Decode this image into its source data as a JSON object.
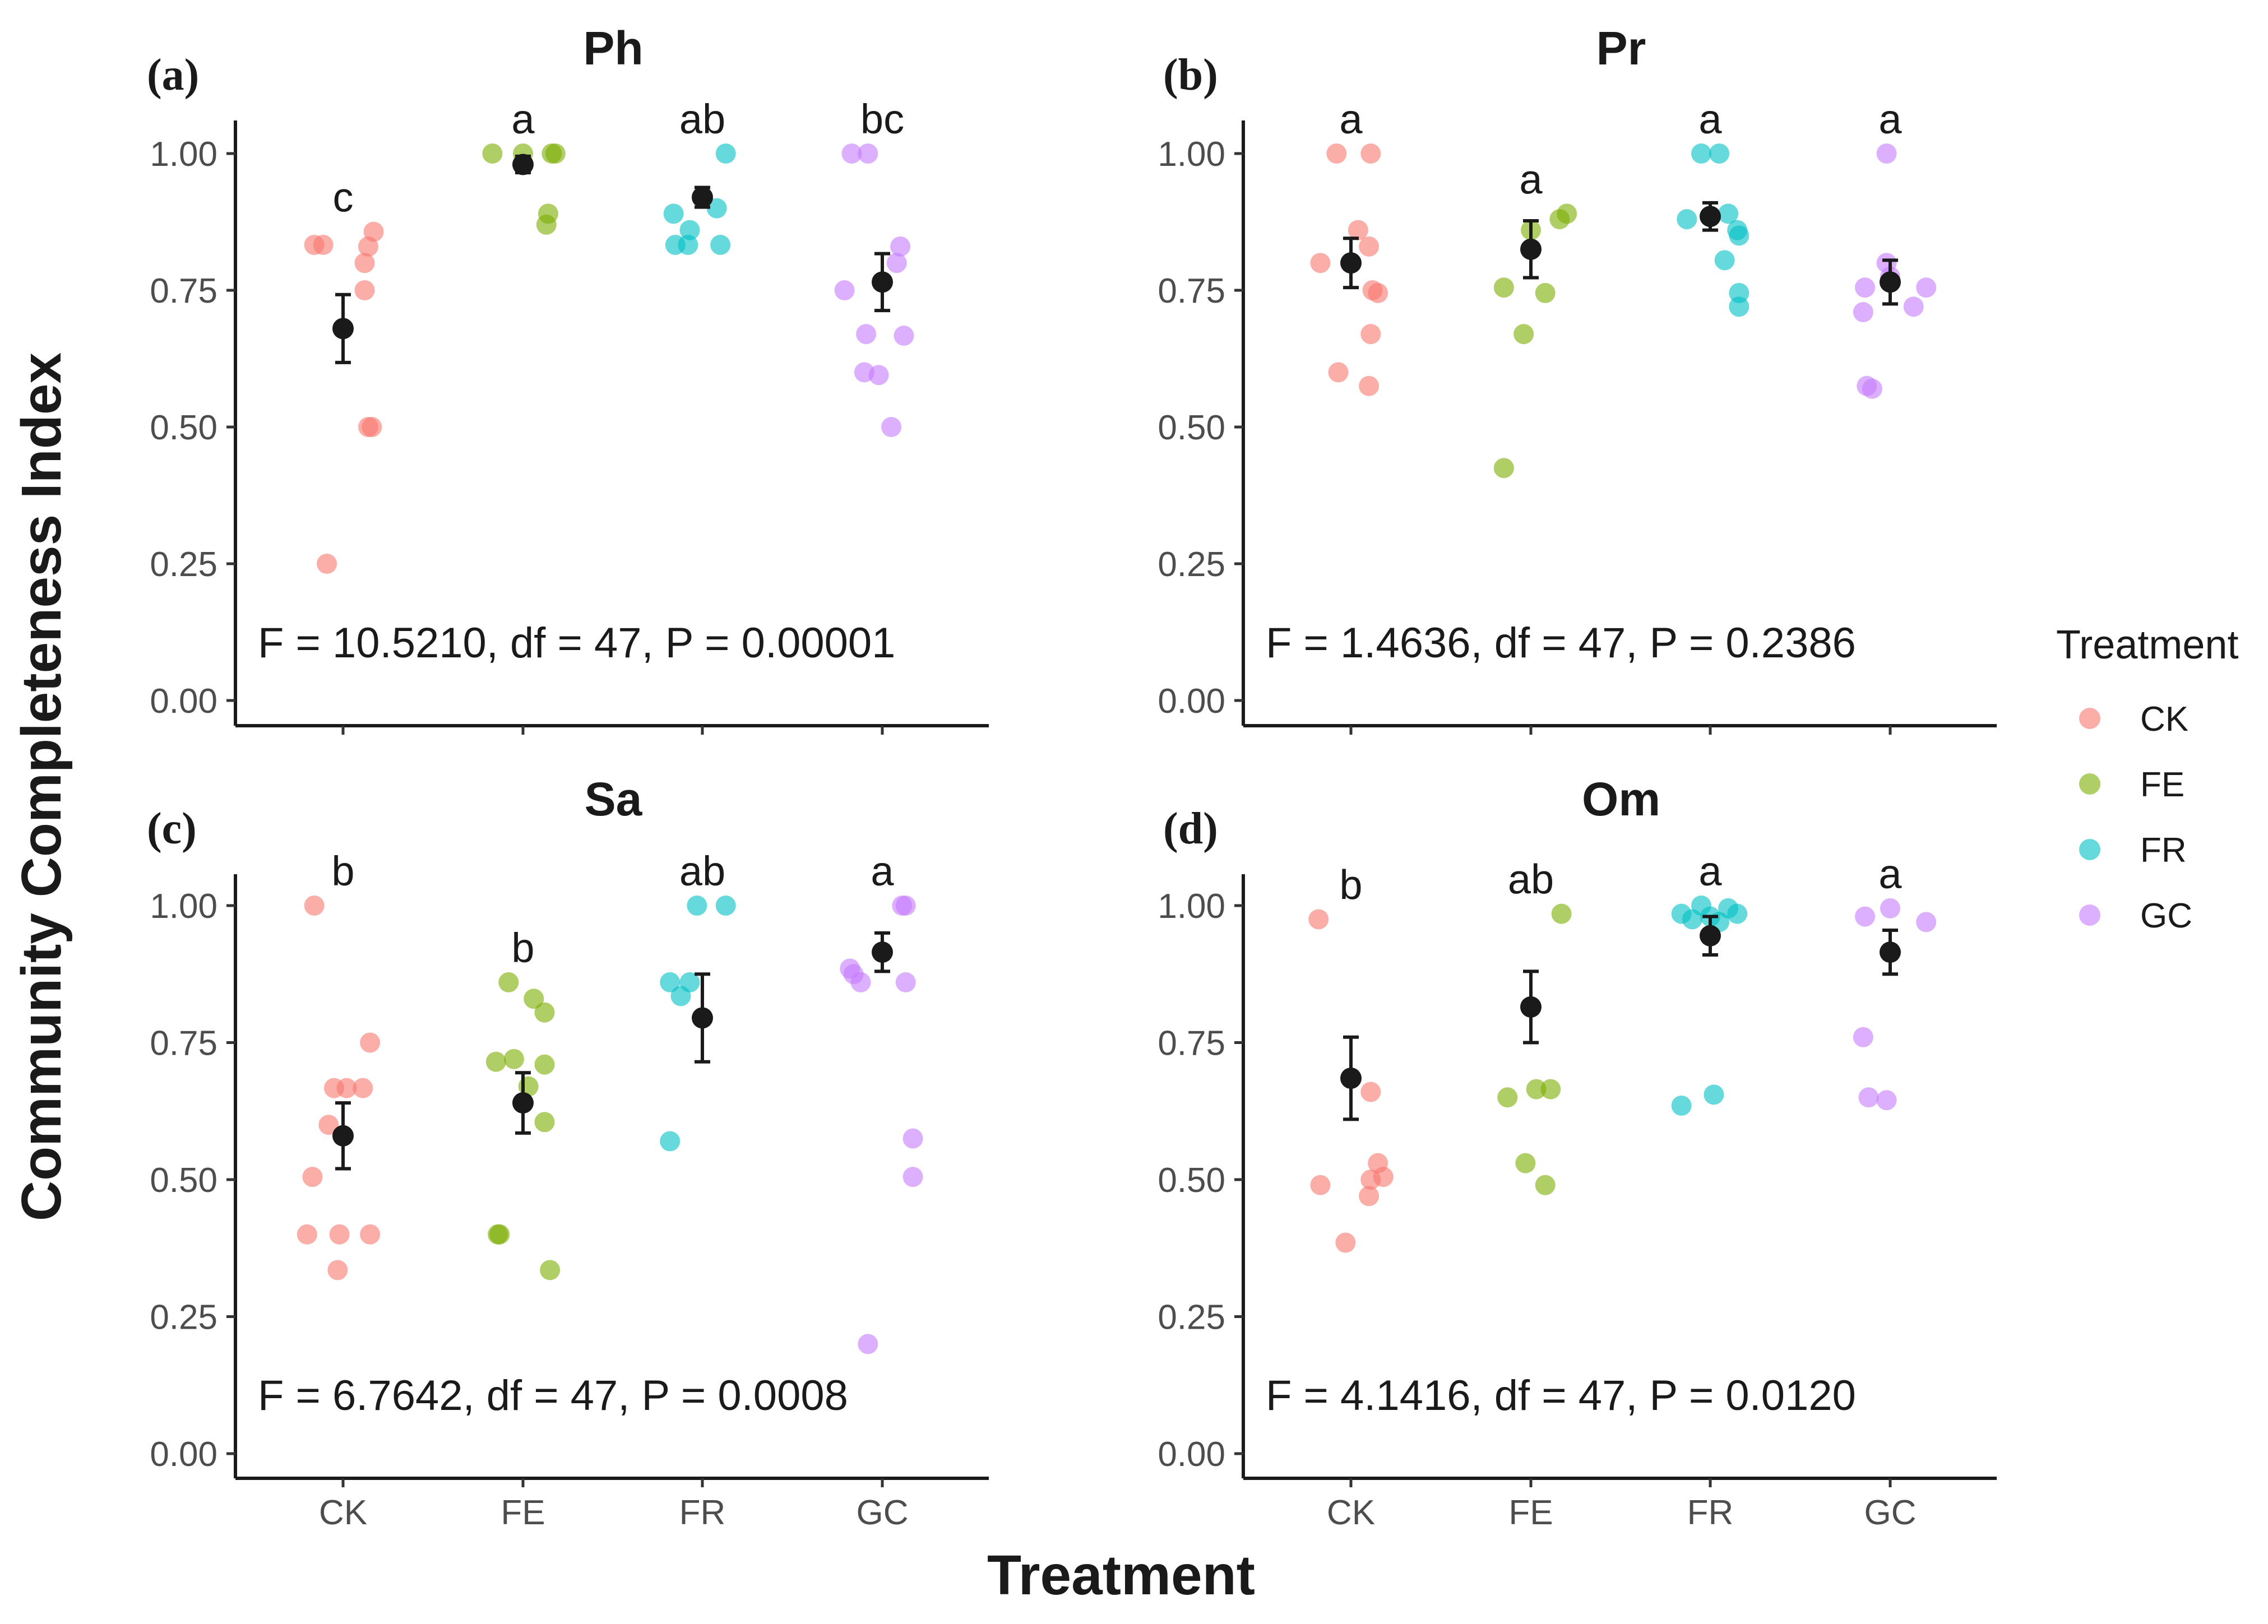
{
  "figure": {
    "y_axis_title": "Community Completeness Index",
    "x_axis_title": "Treatment"
  },
  "legend": {
    "title": "Treatment",
    "items": [
      {
        "label": "CK",
        "color": "#F8766D"
      },
      {
        "label": "FE",
        "color": "#7CAE00"
      },
      {
        "label": "FR",
        "color": "#00BFC4"
      },
      {
        "label": "GC",
        "color": "#C77CFF"
      }
    ]
  },
  "chart_data": [
    {
      "type": "scatter",
      "panel_label": "(a)",
      "title": "Ph",
      "categories": [
        "CK",
        "FE",
        "FR",
        "GC"
      ],
      "ylabel": "Community Completeness Index",
      "xlabel": "Treatment",
      "ylim": [
        0,
        1
      ],
      "yticks": [
        "0.00",
        "0.25",
        "0.50",
        "0.75",
        "1.00"
      ],
      "stat_text": "F = 10.5210, df = 47, P = 0.00001",
      "letters": [
        "c",
        "a",
        "ab",
        "bc"
      ],
      "means": [
        0.68,
        0.98,
        0.92,
        0.765
      ],
      "se": [
        0.062,
        0.015,
        0.018,
        0.052
      ],
      "points": [
        [
          [
            -0.16,
            0.833
          ],
          [
            -0.11,
            0.833
          ],
          [
            0.17,
            0.857
          ],
          [
            0.14,
            0.83
          ],
          [
            0.12,
            0.8
          ],
          [
            0.12,
            0.75
          ],
          [
            0.14,
            0.5
          ],
          [
            0.16,
            0.5
          ],
          [
            -0.09,
            0.25
          ]
        ],
        [
          [
            -0.17,
            1.0
          ],
          [
            0.0,
            1.0
          ],
          [
            0.16,
            1.0
          ],
          [
            0.18,
            1.0
          ],
          [
            0.13,
            0.87
          ],
          [
            0.14,
            0.89
          ]
        ],
        [
          [
            -0.16,
            0.89
          ],
          [
            -0.07,
            0.86
          ],
          [
            0.08,
            0.9
          ],
          [
            0.13,
            1.0
          ],
          [
            -0.15,
            0.833
          ],
          [
            -0.08,
            0.833
          ],
          [
            0.1,
            0.833
          ]
        ],
        [
          [
            -0.17,
            1.0
          ],
          [
            -0.08,
            1.0
          ],
          [
            0.1,
            0.83
          ],
          [
            0.08,
            0.8
          ],
          [
            -0.21,
            0.75
          ],
          [
            -0.09,
            0.67
          ],
          [
            0.12,
            0.667
          ],
          [
            -0.1,
            0.6
          ],
          [
            -0.02,
            0.595
          ],
          [
            0.05,
            0.5
          ]
        ]
      ]
    },
    {
      "type": "scatter",
      "panel_label": "(b)",
      "title": "Pr",
      "categories": [
        "CK",
        "FE",
        "FR",
        "GC"
      ],
      "ylabel": "Community Completeness Index",
      "xlabel": "Treatment",
      "ylim": [
        0,
        1
      ],
      "yticks": [
        "0.00",
        "0.25",
        "0.50",
        "0.75",
        "1.00"
      ],
      "stat_text": "F = 1.4636, df = 47, P = 0.2386",
      "letters": [
        "a",
        "a",
        "a",
        "a"
      ],
      "means": [
        0.8,
        0.825,
        0.885,
        0.765
      ],
      "se": [
        0.045,
        0.052,
        0.025,
        0.04
      ],
      "points": [
        [
          [
            -0.08,
            1.0
          ],
          [
            0.11,
            1.0
          ],
          [
            0.04,
            0.86
          ],
          [
            0.1,
            0.83
          ],
          [
            -0.17,
            0.8
          ],
          [
            0.12,
            0.75
          ],
          [
            0.15,
            0.745
          ],
          [
            0.11,
            0.67
          ],
          [
            -0.07,
            0.6
          ],
          [
            0.1,
            0.575
          ]
        ],
        [
          [
            0.0,
            0.86
          ],
          [
            0.16,
            0.88
          ],
          [
            0.2,
            0.89
          ],
          [
            -0.15,
            0.755
          ],
          [
            0.08,
            0.745
          ],
          [
            -0.04,
            0.67
          ],
          [
            -0.15,
            0.425
          ]
        ],
        [
          [
            -0.05,
            1.0
          ],
          [
            0.05,
            1.0
          ],
          [
            -0.13,
            0.88
          ],
          [
            0.1,
            0.89
          ],
          [
            0.15,
            0.86
          ],
          [
            0.16,
            0.85
          ],
          [
            0.08,
            0.805
          ],
          [
            0.16,
            0.745
          ],
          [
            0.16,
            0.72
          ]
        ],
        [
          [
            -0.02,
            0.8
          ],
          [
            0.0,
            0.775
          ],
          [
            -0.14,
            0.755
          ],
          [
            0.13,
            0.72
          ],
          [
            0.2,
            0.755
          ],
          [
            -0.15,
            0.71
          ],
          [
            -0.13,
            0.575
          ],
          [
            -0.1,
            0.57
          ],
          [
            -0.02,
            1.0
          ]
        ]
      ]
    },
    {
      "type": "scatter",
      "panel_label": "(c)",
      "title": "Sa",
      "categories": [
        "CK",
        "FE",
        "FR",
        "GC"
      ],
      "ylabel": "Community Completeness Index",
      "xlabel": "Treatment",
      "ylim": [
        0,
        1
      ],
      "yticks": [
        "0.00",
        "0.25",
        "0.50",
        "0.75",
        "1.00"
      ],
      "stat_text": "F = 6.7642, df = 47, P = 0.0008",
      "letters": [
        "b",
        "b",
        "ab",
        "a"
      ],
      "means": [
        0.58,
        0.64,
        0.795,
        0.915
      ],
      "se": [
        0.06,
        0.055,
        0.08,
        0.035
      ],
      "points": [
        [
          [
            -0.16,
            1.0
          ],
          [
            0.15,
            0.75
          ],
          [
            -0.05,
            0.667
          ],
          [
            0.02,
            0.667
          ],
          [
            0.11,
            0.667
          ],
          [
            -0.08,
            0.6
          ],
          [
            -0.17,
            0.505
          ],
          [
            -0.2,
            0.4
          ],
          [
            -0.02,
            0.4
          ],
          [
            0.15,
            0.4
          ],
          [
            -0.03,
            0.335
          ]
        ],
        [
          [
            -0.08,
            0.86
          ],
          [
            0.06,
            0.83
          ],
          [
            0.12,
            0.805
          ],
          [
            -0.15,
            0.715
          ],
          [
            -0.05,
            0.72
          ],
          [
            0.12,
            0.71
          ],
          [
            0.03,
            0.67
          ],
          [
            0.12,
            0.605
          ],
          [
            -0.14,
            0.4
          ],
          [
            -0.13,
            0.4
          ],
          [
            0.15,
            0.335
          ]
        ],
        [
          [
            -0.03,
            1.0
          ],
          [
            0.13,
            1.0
          ],
          [
            -0.18,
            0.86
          ],
          [
            -0.07,
            0.86
          ],
          [
            -0.12,
            0.835
          ],
          [
            -0.18,
            0.57
          ]
        ],
        [
          [
            -0.18,
            0.885
          ],
          [
            -0.16,
            0.875
          ],
          [
            -0.12,
            0.86
          ],
          [
            0.11,
            1.0
          ],
          [
            0.13,
            1.0
          ],
          [
            0.13,
            0.86
          ],
          [
            0.17,
            0.575
          ],
          [
            0.17,
            0.505
          ],
          [
            -0.08,
            0.2
          ]
        ]
      ]
    },
    {
      "type": "scatter",
      "panel_label": "(d)",
      "title": "Om",
      "categories": [
        "CK",
        "FE",
        "FR",
        "GC"
      ],
      "ylabel": "Community Completeness Index",
      "xlabel": "Treatment",
      "ylim": [
        0,
        1
      ],
      "yticks": [
        "0.00",
        "0.25",
        "0.50",
        "0.75",
        "1.00"
      ],
      "stat_text": "F = 4.1416, df = 47, P = 0.0120",
      "letters": [
        "b",
        "ab",
        "a",
        "a"
      ],
      "means": [
        0.685,
        0.815,
        0.945,
        0.915
      ],
      "se": [
        0.075,
        0.065,
        0.035,
        0.04
      ],
      "points": [
        [
          [
            -0.18,
            0.975
          ],
          [
            0.11,
            0.66
          ],
          [
            0.15,
            0.53
          ],
          [
            0.11,
            0.5
          ],
          [
            0.18,
            0.505
          ],
          [
            -0.17,
            0.49
          ],
          [
            0.1,
            0.47
          ],
          [
            -0.03,
            0.385
          ]
        ],
        [
          [
            0.17,
            0.985
          ],
          [
            -0.13,
            0.65
          ],
          [
            0.03,
            0.665
          ],
          [
            0.11,
            0.665
          ],
          [
            -0.03,
            0.53
          ],
          [
            0.08,
            0.49
          ]
        ],
        [
          [
            -0.16,
            0.985
          ],
          [
            -0.05,
            1.0
          ],
          [
            0.1,
            0.995
          ],
          [
            0.15,
            0.985
          ],
          [
            -0.1,
            0.975
          ],
          [
            0.0,
            0.98
          ],
          [
            0.05,
            0.97
          ],
          [
            -0.16,
            0.635
          ],
          [
            0.02,
            0.655
          ]
        ],
        [
          [
            -0.14,
            0.98
          ],
          [
            0.0,
            0.995
          ],
          [
            0.2,
            0.97
          ],
          [
            -0.15,
            0.76
          ],
          [
            -0.12,
            0.65
          ],
          [
            -0.02,
            0.645
          ]
        ]
      ]
    }
  ]
}
